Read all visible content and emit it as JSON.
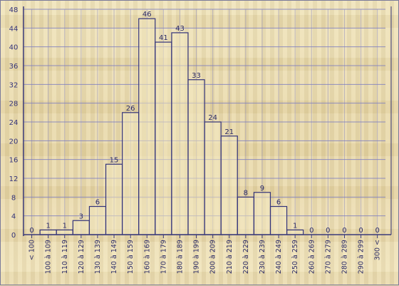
{
  "chart_data": {
    "type": "bar",
    "title": "",
    "xlabel": "",
    "ylabel": "",
    "ylim": [
      0,
      48
    ],
    "yticks": [
      0,
      4,
      8,
      12,
      16,
      20,
      24,
      28,
      32,
      36,
      40,
      44,
      48
    ],
    "grid": true,
    "categories": [
      "< 100",
      "100 à 109",
      "110 à 119",
      "120 à 129",
      "130 à 139",
      "140 à 149",
      "150 à 159",
      "160 à 169",
      "170 à 179",
      "180 à 189",
      "190 à 199",
      "200 à 209",
      "210 à 219",
      "220 à 229",
      "230 à 239",
      "240 à 249",
      "250 à 259",
      "260 à 269",
      "270 à 279",
      "280 à 289",
      "290 à 299",
      "300 <"
    ],
    "values": [
      0,
      1,
      1,
      3,
      6,
      15,
      26,
      46,
      41,
      43,
      33,
      24,
      21,
      8,
      9,
      6,
      1,
      0,
      0,
      0,
      0,
      0
    ]
  },
  "colors": {
    "axis": "#3a3a7a",
    "grid": "#7f7fc0",
    "bar_stroke": "#33337a",
    "bar_fill": "#f3e7bf"
  }
}
